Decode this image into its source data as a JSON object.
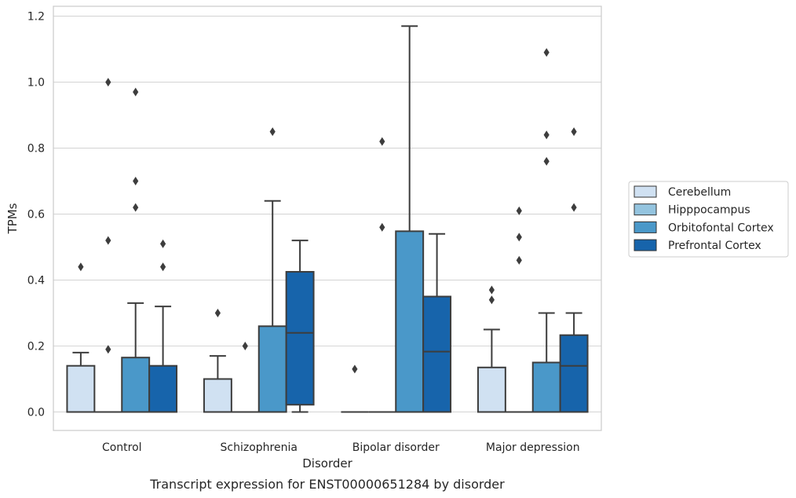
{
  "caption": "Transcript expression for ENST00000651284 by disorder",
  "chart_data": {
    "type": "box",
    "xlabel": "Disorder",
    "ylabel": "TPMs",
    "ylim": [
      -0.056,
      1.23
    ],
    "yticks": [
      0.0,
      0.2,
      0.4,
      0.6,
      0.8,
      1.0,
      1.2
    ],
    "ytick_labels": [
      "0.0",
      "0.2",
      "0.4",
      "0.6",
      "0.8",
      "1.0",
      "1.2"
    ],
    "grid": "horizontal",
    "legend_position": "right",
    "categories": [
      "Control",
      "Schizophrenia",
      "Bipolar disorder",
      "Major depression"
    ],
    "series": [
      {
        "name": "Cerebellum",
        "color": "#d0e1f2",
        "boxes": [
          {
            "q1": 0.0,
            "median": 0.0,
            "q3": 0.14,
            "whisker_low": 0.0,
            "whisker_high": 0.18,
            "outliers": [
              0.44
            ]
          },
          {
            "q1": 0.0,
            "median": 0.0,
            "q3": 0.1,
            "whisker_low": 0.0,
            "whisker_high": 0.17,
            "outliers": [
              0.3
            ]
          },
          {
            "q1": 0.0,
            "median": 0.0,
            "q3": 0.0,
            "whisker_low": 0.0,
            "whisker_high": 0.0,
            "outliers": [
              0.13
            ]
          },
          {
            "q1": 0.0,
            "median": 0.0,
            "q3": 0.135,
            "whisker_low": 0.0,
            "whisker_high": 0.25,
            "outliers": [
              0.34,
              0.37
            ]
          }
        ]
      },
      {
        "name": "Hipppocampus",
        "color": "#94c4df",
        "boxes": [
          {
            "q1": 0.0,
            "median": 0.0,
            "q3": 0.0,
            "whisker_low": 0.0,
            "whisker_high": 0.0,
            "outliers": [
              0.19,
              0.52,
              1.0
            ]
          },
          {
            "q1": 0.0,
            "median": 0.0,
            "q3": 0.0,
            "whisker_low": 0.0,
            "whisker_high": 0.0,
            "outliers": [
              0.2
            ]
          },
          {
            "q1": 0.0,
            "median": 0.0,
            "q3": 0.0,
            "whisker_low": 0.0,
            "whisker_high": 0.0,
            "outliers": [
              0.56,
              0.82
            ]
          },
          {
            "q1": 0.0,
            "median": 0.0,
            "q3": 0.0,
            "whisker_low": 0.0,
            "whisker_high": 0.0,
            "outliers": [
              0.46,
              0.53,
              0.61
            ]
          }
        ]
      },
      {
        "name": "Orbitofontal Cortex",
        "color": "#4a98c9",
        "boxes": [
          {
            "q1": 0.0,
            "median": 0.0,
            "q3": 0.165,
            "whisker_low": 0.0,
            "whisker_high": 0.33,
            "outliers": [
              0.62,
              0.7,
              0.97
            ]
          },
          {
            "q1": 0.0,
            "median": 0.0,
            "q3": 0.26,
            "whisker_low": 0.0,
            "whisker_high": 0.64,
            "outliers": [
              0.85
            ]
          },
          {
            "q1": 0.0,
            "median": 0.0,
            "q3": 0.548,
            "whisker_low": 0.0,
            "whisker_high": 1.17,
            "outliers": []
          },
          {
            "q1": 0.0,
            "median": 0.0,
            "q3": 0.15,
            "whisker_low": 0.0,
            "whisker_high": 0.3,
            "outliers": [
              0.76,
              0.84,
              1.09
            ]
          }
        ]
      },
      {
        "name": "Prefrontal Cortex",
        "color": "#1764ab",
        "boxes": [
          {
            "q1": 0.0,
            "median": 0.0,
            "q3": 0.14,
            "whisker_low": 0.0,
            "whisker_high": 0.32,
            "outliers": [
              0.44,
              0.51
            ]
          },
          {
            "q1": 0.022,
            "median": 0.24,
            "q3": 0.425,
            "whisker_low": 0.0,
            "whisker_high": 0.52,
            "outliers": []
          },
          {
            "q1": 0.0,
            "median": 0.183,
            "q3": 0.35,
            "whisker_low": 0.0,
            "whisker_high": 0.54,
            "outliers": []
          },
          {
            "q1": 0.0,
            "median": 0.14,
            "q3": 0.233,
            "whisker_low": 0.0,
            "whisker_high": 0.3,
            "outliers": [
              0.62,
              0.85
            ]
          }
        ]
      }
    ]
  }
}
